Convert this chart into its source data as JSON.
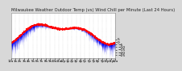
{
  "title": "Milwaukee Weather Outdoor Temp (vs) Wind Chill per Minute (Last 24 Hours)",
  "title_fontsize": 3.8,
  "background_color": "#d8d8d8",
  "plot_bg_color": "#ffffff",
  "bar_color": "#0000ee",
  "line_color": "#ff0000",
  "line_width": 0.6,
  "ytick_fontsize": 3.2,
  "xtick_fontsize": 2.8,
  "ylim": [
    -30,
    55
  ],
  "yticks": [
    5,
    0,
    -5,
    -10,
    -15,
    -20,
    -25
  ],
  "num_points": 1440,
  "grid_color": "#bbbbbb",
  "seed": 42
}
